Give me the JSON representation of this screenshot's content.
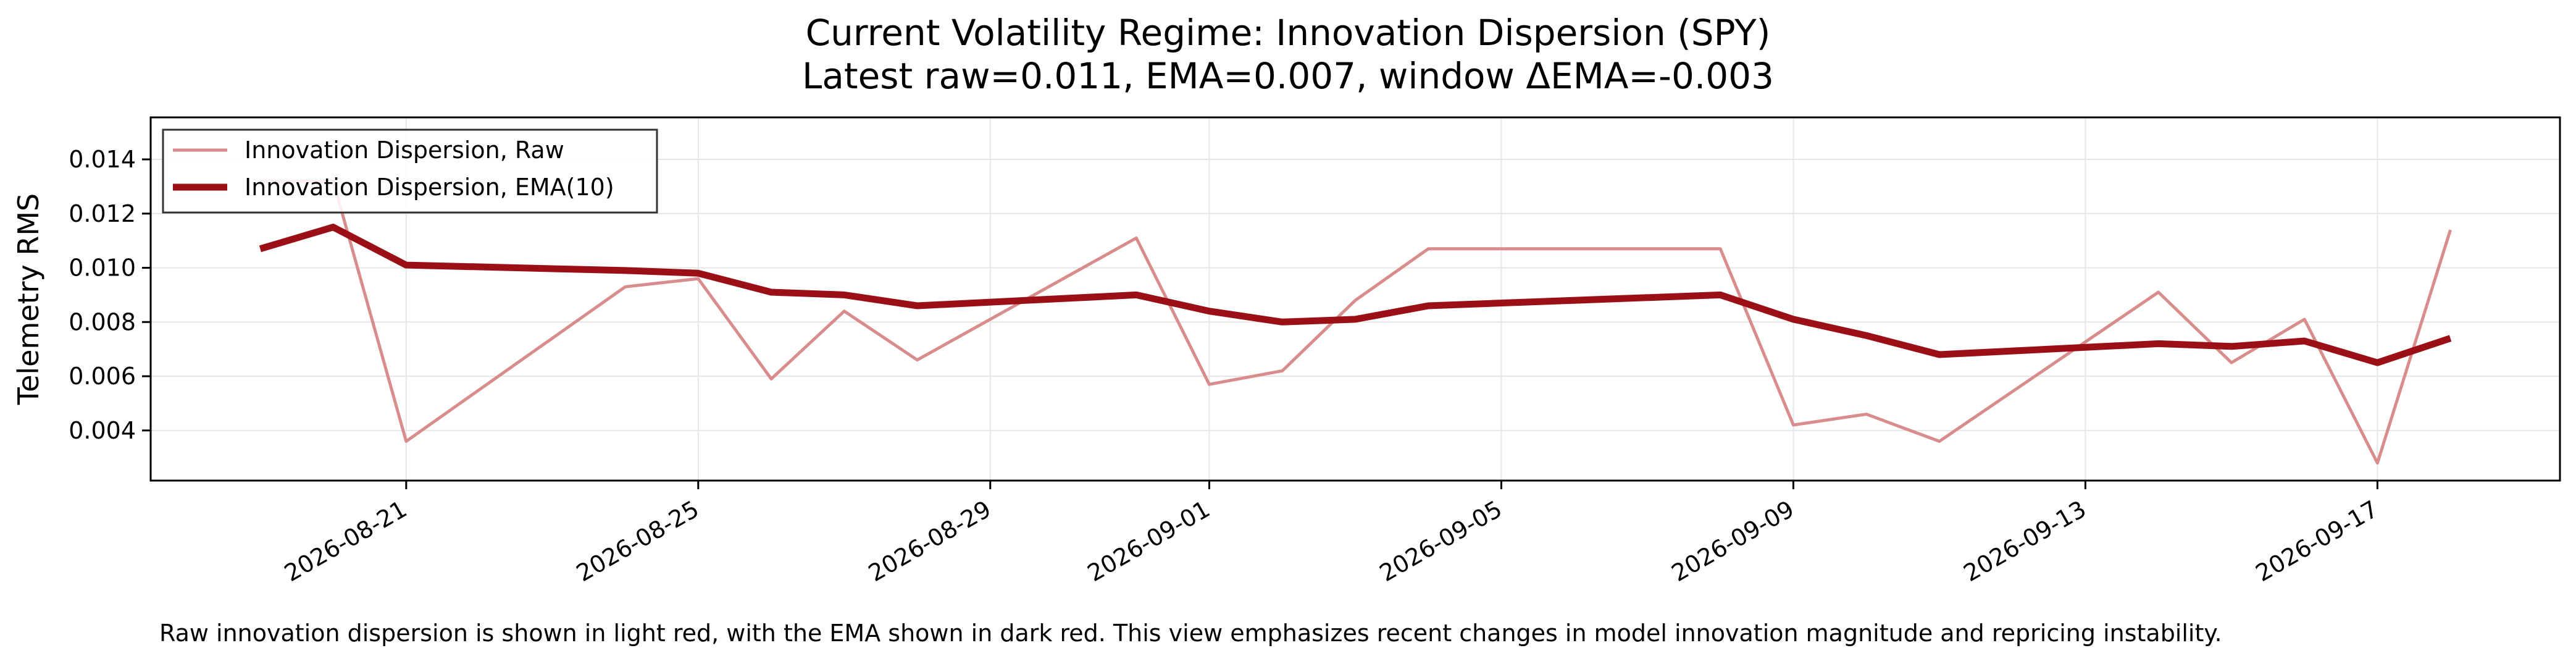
{
  "chart_data": {
    "type": "line",
    "title": "Current Volatility Regime: Innovation Dispersion (SPY)",
    "subtitle": "Latest raw=0.011, EMA=0.007, window ΔEMA=-0.003",
    "xlabel": "",
    "ylabel": "Telemetry RMS",
    "x": [
      "2026-08-19",
      "2026-08-20",
      "2026-08-21",
      "2026-08-24",
      "2026-08-25",
      "2026-08-26",
      "2026-08-27",
      "2026-08-28",
      "2026-08-31",
      "2026-09-01",
      "2026-09-02",
      "2026-09-03",
      "2026-09-04",
      "2026-09-08",
      "2026-09-09",
      "2026-09-10",
      "2026-09-11",
      "2026-09-14",
      "2026-09-15",
      "2026-09-16",
      "2026-09-17",
      "2026-09-18"
    ],
    "series": [
      {
        "name": "Innovation Dispersion, Raw",
        "color": "#d98c8c",
        "values": [
          0.0132,
          0.0132,
          0.0036,
          0.0093,
          0.0096,
          0.0059,
          0.0084,
          0.0066,
          0.0111,
          0.0057,
          0.0062,
          0.0088,
          0.0107,
          0.0107,
          0.0042,
          0.0046,
          0.0036,
          0.0091,
          0.0065,
          0.0081,
          0.0028,
          0.0114
        ]
      },
      {
        "name": "Innovation Dispersion, EMA(10)",
        "color": "#9b1016",
        "values": [
          0.0107,
          0.0115,
          0.0101,
          0.0099,
          0.0098,
          0.0091,
          0.009,
          0.0086,
          0.009,
          0.0084,
          0.008,
          0.0081,
          0.0086,
          0.009,
          0.0081,
          0.0075,
          0.0068,
          0.0072,
          0.0071,
          0.0073,
          0.0065,
          0.0074
        ]
      }
    ],
    "x_ticks": [
      "2026-08-21",
      "2026-08-25",
      "2026-08-29",
      "2026-09-01",
      "2026-09-05",
      "2026-09-09",
      "2026-09-13",
      "2026-09-17"
    ],
    "y_ticks": [
      "0.004",
      "0.006",
      "0.008",
      "0.010",
      "0.012",
      "0.014"
    ],
    "xlim": [
      "2026-08-17 12:00",
      "2026-09-19 12:00"
    ],
    "ylim": [
      0.00215,
      0.01555
    ],
    "grid": true,
    "legend_position": "upper-left",
    "caption": "Raw innovation dispersion is shown in light red, with the EMA shown in dark red. This view emphasizes recent changes in model innovation magnitude and repricing instability."
  }
}
